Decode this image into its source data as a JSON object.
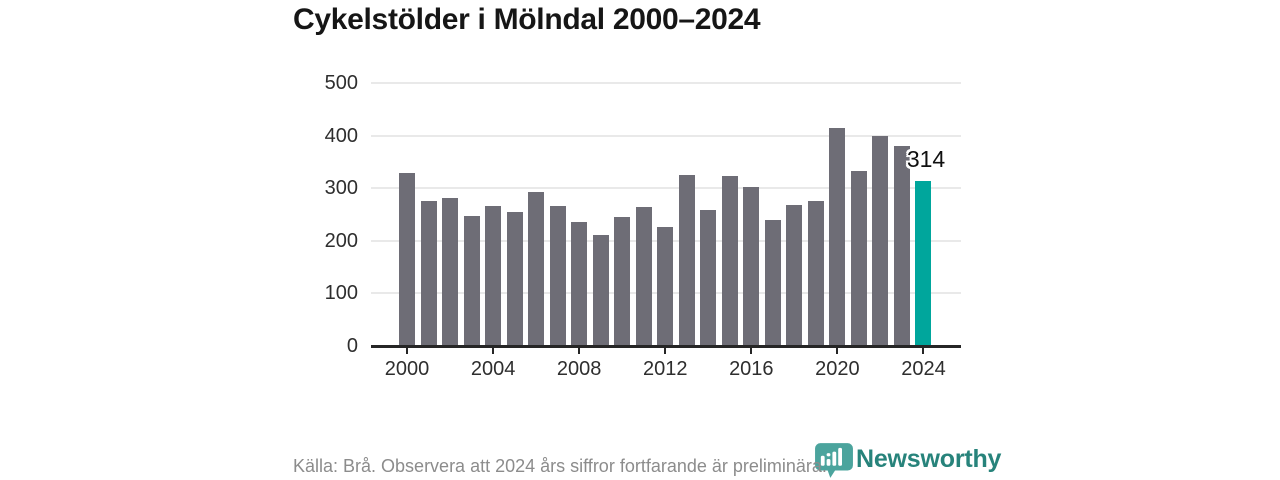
{
  "title": "Cykelstölder i Mölndal 2000–2024",
  "footer": {
    "source_note": "Källa: Brå. Observera att 2024 års siffror fortfarande är preliminära."
  },
  "brand": {
    "name": "Newsworthy"
  },
  "colors": {
    "bar": "#6e6d76",
    "highlight_bar": "#00a69c",
    "grid": "#e9e9e9",
    "axis": "#262626",
    "tick_label": "#2e2e2e",
    "title": "#161616",
    "note": "#8c8c8c",
    "brand_text": "#27837b",
    "brand_icon": "#4ba49d"
  },
  "chart_data": {
    "type": "bar",
    "title": "Cykelstölder i Mölndal 2000–2024",
    "x": [
      2000,
      2001,
      2002,
      2003,
      2004,
      2005,
      2006,
      2007,
      2008,
      2009,
      2010,
      2011,
      2012,
      2013,
      2014,
      2015,
      2016,
      2017,
      2018,
      2019,
      2020,
      2021,
      2022,
      2023,
      2024
    ],
    "values": [
      328,
      276,
      281,
      248,
      266,
      254,
      293,
      266,
      236,
      212,
      245,
      264,
      227,
      325,
      259,
      324,
      302,
      240,
      268,
      275,
      414,
      333,
      400,
      380,
      314
    ],
    "highlight_index": 24,
    "highlight_value_label": "314",
    "ylim": [
      0,
      500
    ],
    "y_ticks": [
      0,
      100,
      200,
      300,
      400,
      500
    ],
    "x_tick_labels": [
      "2000",
      "2004",
      "2008",
      "2012",
      "2016",
      "2020",
      "2024"
    ],
    "grid": "horizontal",
    "legend": "none"
  }
}
